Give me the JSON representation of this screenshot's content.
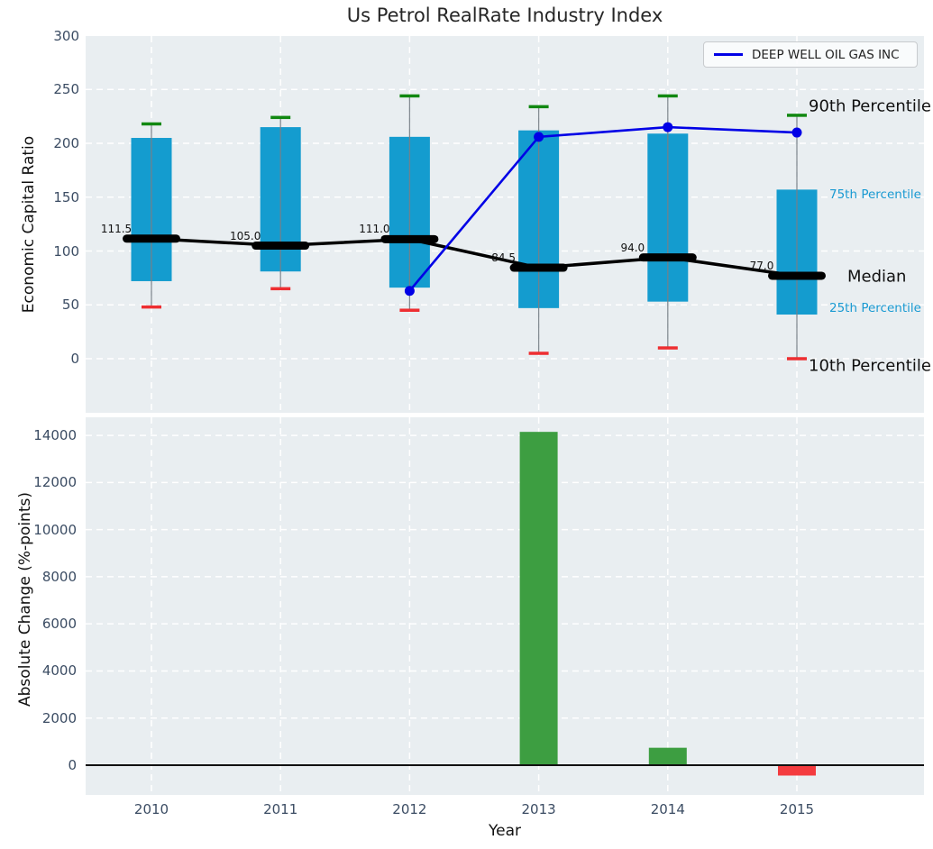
{
  "title": "Us Petrol RealRate Industry Index",
  "legend": {
    "label": "DEEP WELL OIL GAS INC"
  },
  "annotations": {
    "p90": "90th Percentile",
    "p75": "75th Percentile",
    "median": "Median",
    "p25": "25th Percentile",
    "p10": "10th Percentile"
  },
  "colors": {
    "box_fill": "#149ccf",
    "cap_green": "#118811",
    "cap_red": "#ee2e31",
    "whisker": "#777f87",
    "median_line": "#000000",
    "company_line": "#0000e6",
    "bar_positive": "#3d9e41",
    "bar_negative": "#f43b3f",
    "axes_background": "#e9eef1",
    "grid": "#ffffff",
    "tick_label": "#3b4c63",
    "annotation_blue": "#1a9ad2",
    "zero_line": "#111111"
  },
  "chart_data": [
    {
      "type": "boxplot-percentiles",
      "title": "Us Petrol RealRate Industry Index",
      "xlabel": "Year",
      "ylabel": "Economic Capital Ratio",
      "categories": [
        2010,
        2011,
        2012,
        2013,
        2014,
        2015
      ],
      "yticks": [
        0,
        50,
        100,
        150,
        200,
        250,
        300
      ],
      "ylim": [
        -48,
        300
      ],
      "grid": true,
      "legend_position": "upper right",
      "series": {
        "p90": [
          218,
          224,
          244,
          234,
          244,
          226
        ],
        "p75": [
          205,
          215,
          206,
          212,
          209,
          157
        ],
        "median": [
          111.5,
          105.0,
          111.0,
          84.5,
          94.0,
          77.0
        ],
        "p25": [
          72,
          81,
          66,
          47,
          53,
          41
        ],
        "p10": [
          48,
          65,
          45,
          5,
          10,
          0
        ],
        "median_labels": [
          "111.5",
          "105.0",
          "111.0",
          "84.5",
          "94.0",
          "77.0"
        ],
        "company": {
          "name": "DEEP WELL OIL GAS INC",
          "values": [
            null,
            null,
            63,
            206,
            215,
            210
          ]
        }
      }
    },
    {
      "type": "bar",
      "xlabel": "Year",
      "ylabel": "Absolute Change (%-points)",
      "categories": [
        2010,
        2011,
        2012,
        2013,
        2014,
        2015
      ],
      "values": [
        null,
        null,
        null,
        14150,
        740,
        -440
      ],
      "yticks": [
        0,
        2000,
        4000,
        6000,
        8000,
        10000,
        12000,
        14000
      ],
      "ylim": [
        -1200,
        14800
      ],
      "grid": true
    }
  ]
}
